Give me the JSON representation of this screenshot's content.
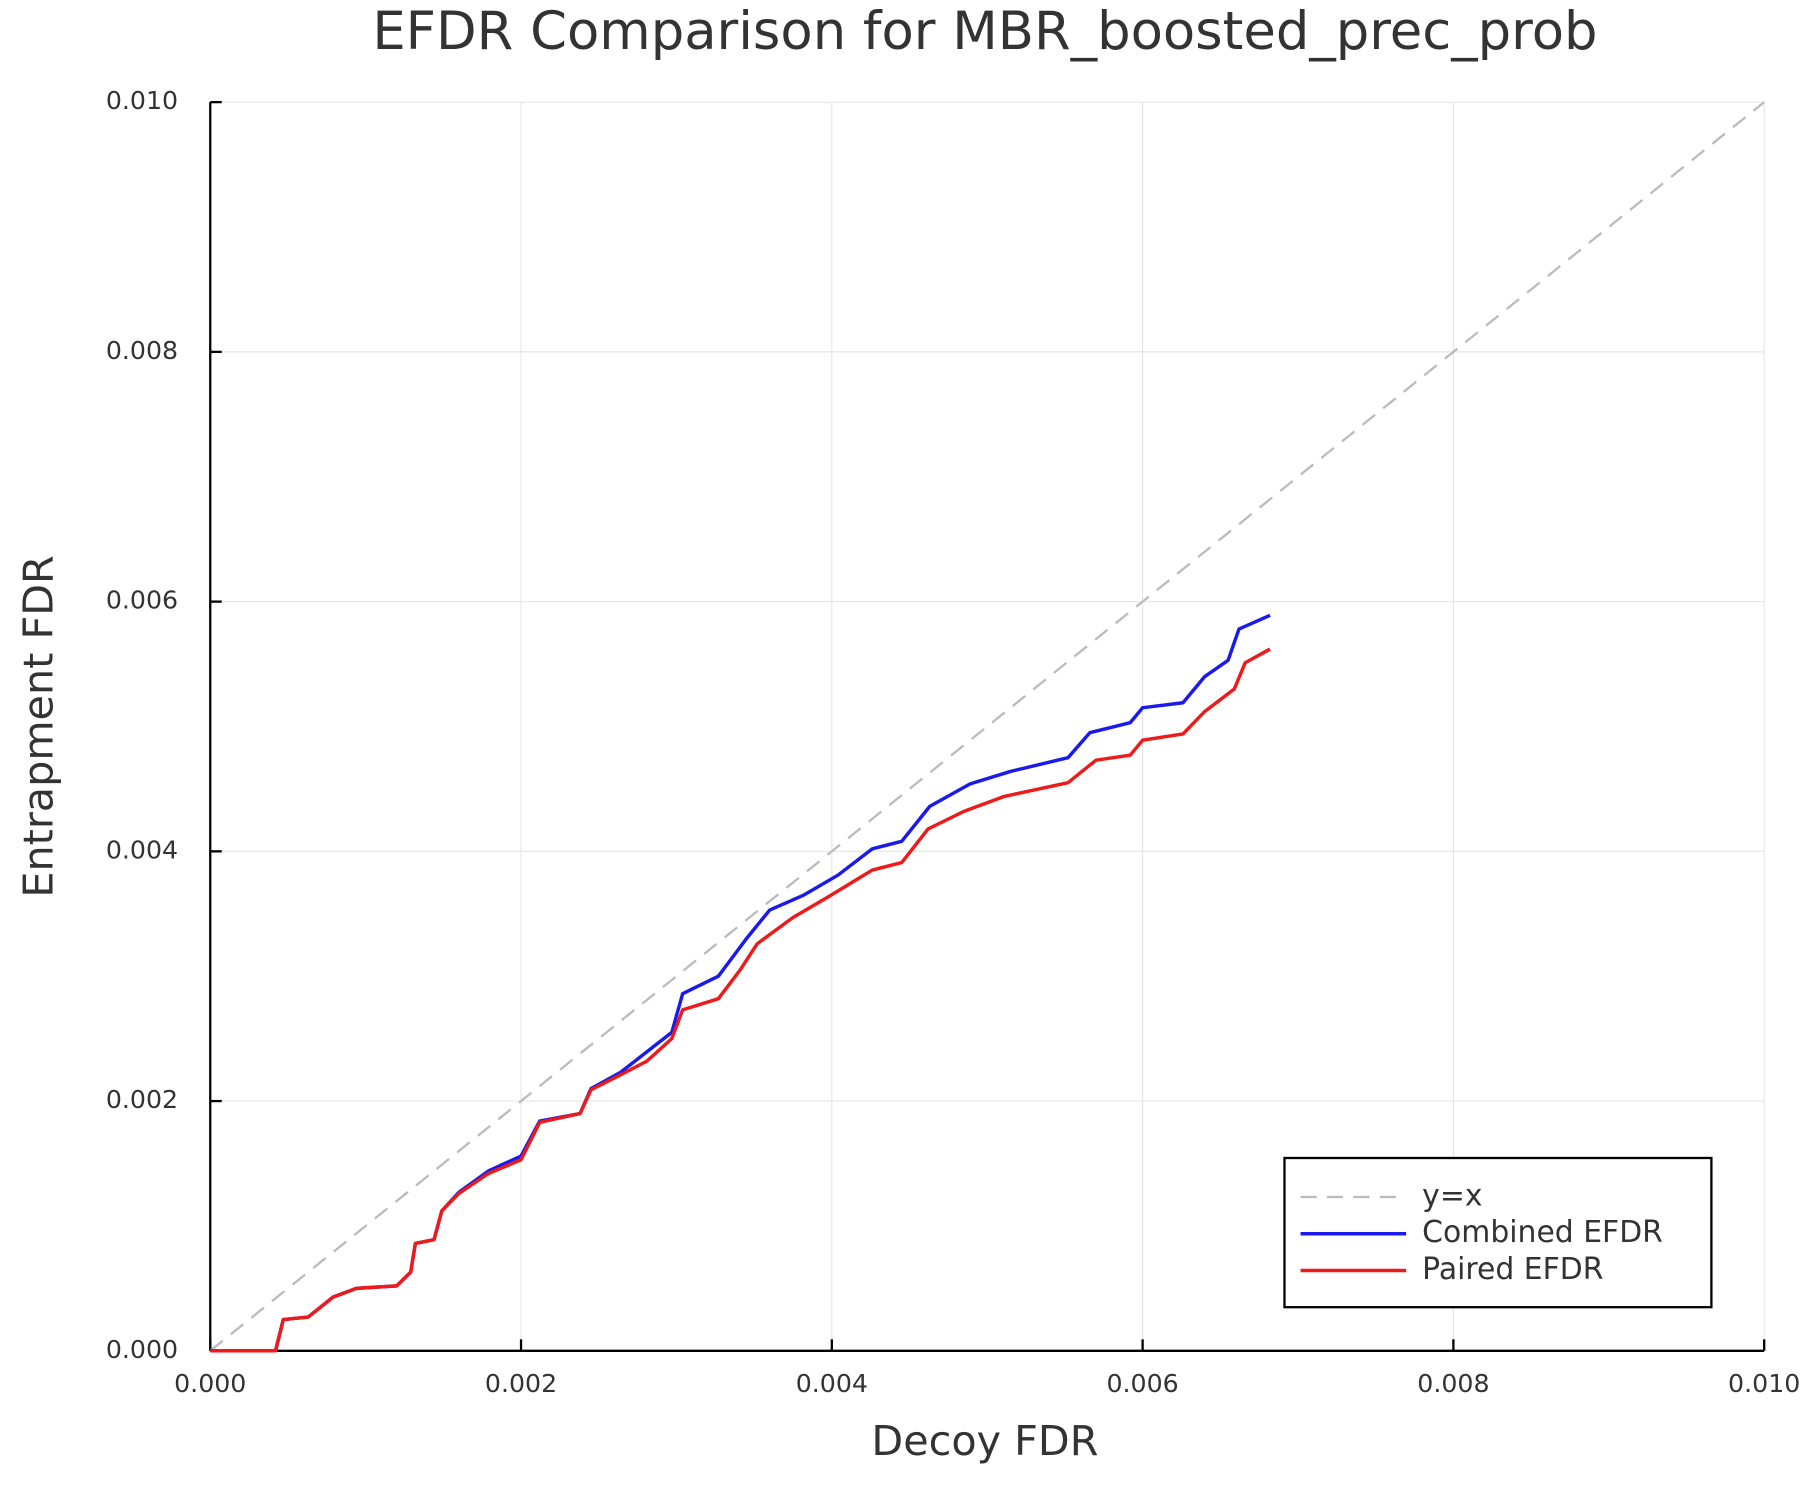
{
  "chart_data": {
    "type": "line",
    "title": "EFDR Comparison for MBR_boosted_prec_prob",
    "x_label": "Decoy FDR",
    "y_label": "Entrapment FDR",
    "xlim": [
      0,
      0.01
    ],
    "ylim": [
      0,
      0.01
    ],
    "xticks": [
      {
        "value": 0,
        "label": "0.000"
      },
      {
        "value": 0.002,
        "label": "0.002"
      },
      {
        "value": 0.004,
        "label": "0.004"
      },
      {
        "value": 0.006,
        "label": "0.006"
      },
      {
        "value": 0.008,
        "label": "0.008"
      },
      {
        "value": 0.01,
        "label": "0.010"
      }
    ],
    "yticks": [
      {
        "value": 0,
        "label": "0.000"
      },
      {
        "value": 0.002,
        "label": "0.002"
      },
      {
        "value": 0.004,
        "label": "0.004"
      },
      {
        "value": 0.006,
        "label": "0.006"
      },
      {
        "value": 0.008,
        "label": "0.008"
      },
      {
        "value": 0.01,
        "label": "0.010"
      }
    ],
    "grid": true,
    "legend": "bottom-right",
    "series": [
      {
        "name": "y=x",
        "color": "#bbbbbb",
        "dashed": true,
        "x": [
          0,
          0.01
        ],
        "values": [
          0,
          0.01
        ]
      },
      {
        "name": "Combined EFDR",
        "color": "#1a1aee",
        "dashed": false,
        "x": [
          0,
          0.00042,
          0.00047,
          0.00063,
          0.00079,
          0.00094,
          0.0012,
          0.00129,
          0.00132,
          0.00144,
          0.00149,
          0.0016,
          0.00179,
          0.002,
          0.00212,
          0.00238,
          0.00245,
          0.00264,
          0.00297,
          0.00304,
          0.00327,
          0.00345,
          0.0036,
          0.00382,
          0.00404,
          0.00426,
          0.00445,
          0.00463,
          0.00489,
          0.00515,
          0.00552,
          0.00566,
          0.00592,
          0.006,
          0.00626,
          0.0064,
          0.00655,
          0.00662,
          0.00682
        ],
        "values": [
          0,
          0,
          0.00025,
          0.00027,
          0.00043,
          0.0005,
          0.00052,
          0.00063,
          0.00086,
          0.00089,
          0.00112,
          0.00127,
          0.00144,
          0.00156,
          0.00184,
          0.0019,
          0.0021,
          0.00223,
          0.00255,
          0.00286,
          0.003,
          0.0033,
          0.00353,
          0.00365,
          0.00381,
          0.00402,
          0.00408,
          0.00436,
          0.00454,
          0.00464,
          0.00475,
          0.00495,
          0.00503,
          0.00515,
          0.00519,
          0.0054,
          0.00553,
          0.00578,
          0.00589
        ]
      },
      {
        "name": "Paired EFDR",
        "color": "#ee1a1a",
        "dashed": false,
        "x": [
          0,
          0.00042,
          0.00047,
          0.00063,
          0.00079,
          0.00094,
          0.0012,
          0.00129,
          0.00132,
          0.00144,
          0.00149,
          0.0016,
          0.00179,
          0.002,
          0.00212,
          0.00238,
          0.00245,
          0.00264,
          0.00281,
          0.00297,
          0.00304,
          0.00327,
          0.00341,
          0.00352,
          0.00375,
          0.00397,
          0.00426,
          0.00445,
          0.00462,
          0.00485,
          0.00511,
          0.00552,
          0.0057,
          0.00592,
          0.006,
          0.00626,
          0.0064,
          0.00659,
          0.00666,
          0.00682
        ],
        "values": [
          0,
          0,
          0.00025,
          0.00027,
          0.00043,
          0.0005,
          0.00052,
          0.00063,
          0.00086,
          0.00089,
          0.00112,
          0.00126,
          0.00142,
          0.00153,
          0.00183,
          0.0019,
          0.00209,
          0.00221,
          0.00232,
          0.0025,
          0.00273,
          0.00282,
          0.00305,
          0.00326,
          0.00347,
          0.00363,
          0.00385,
          0.00391,
          0.00418,
          0.00432,
          0.00444,
          0.00455,
          0.00473,
          0.00477,
          0.00489,
          0.00494,
          0.00512,
          0.0053,
          0.00551,
          0.00562
        ]
      }
    ]
  }
}
